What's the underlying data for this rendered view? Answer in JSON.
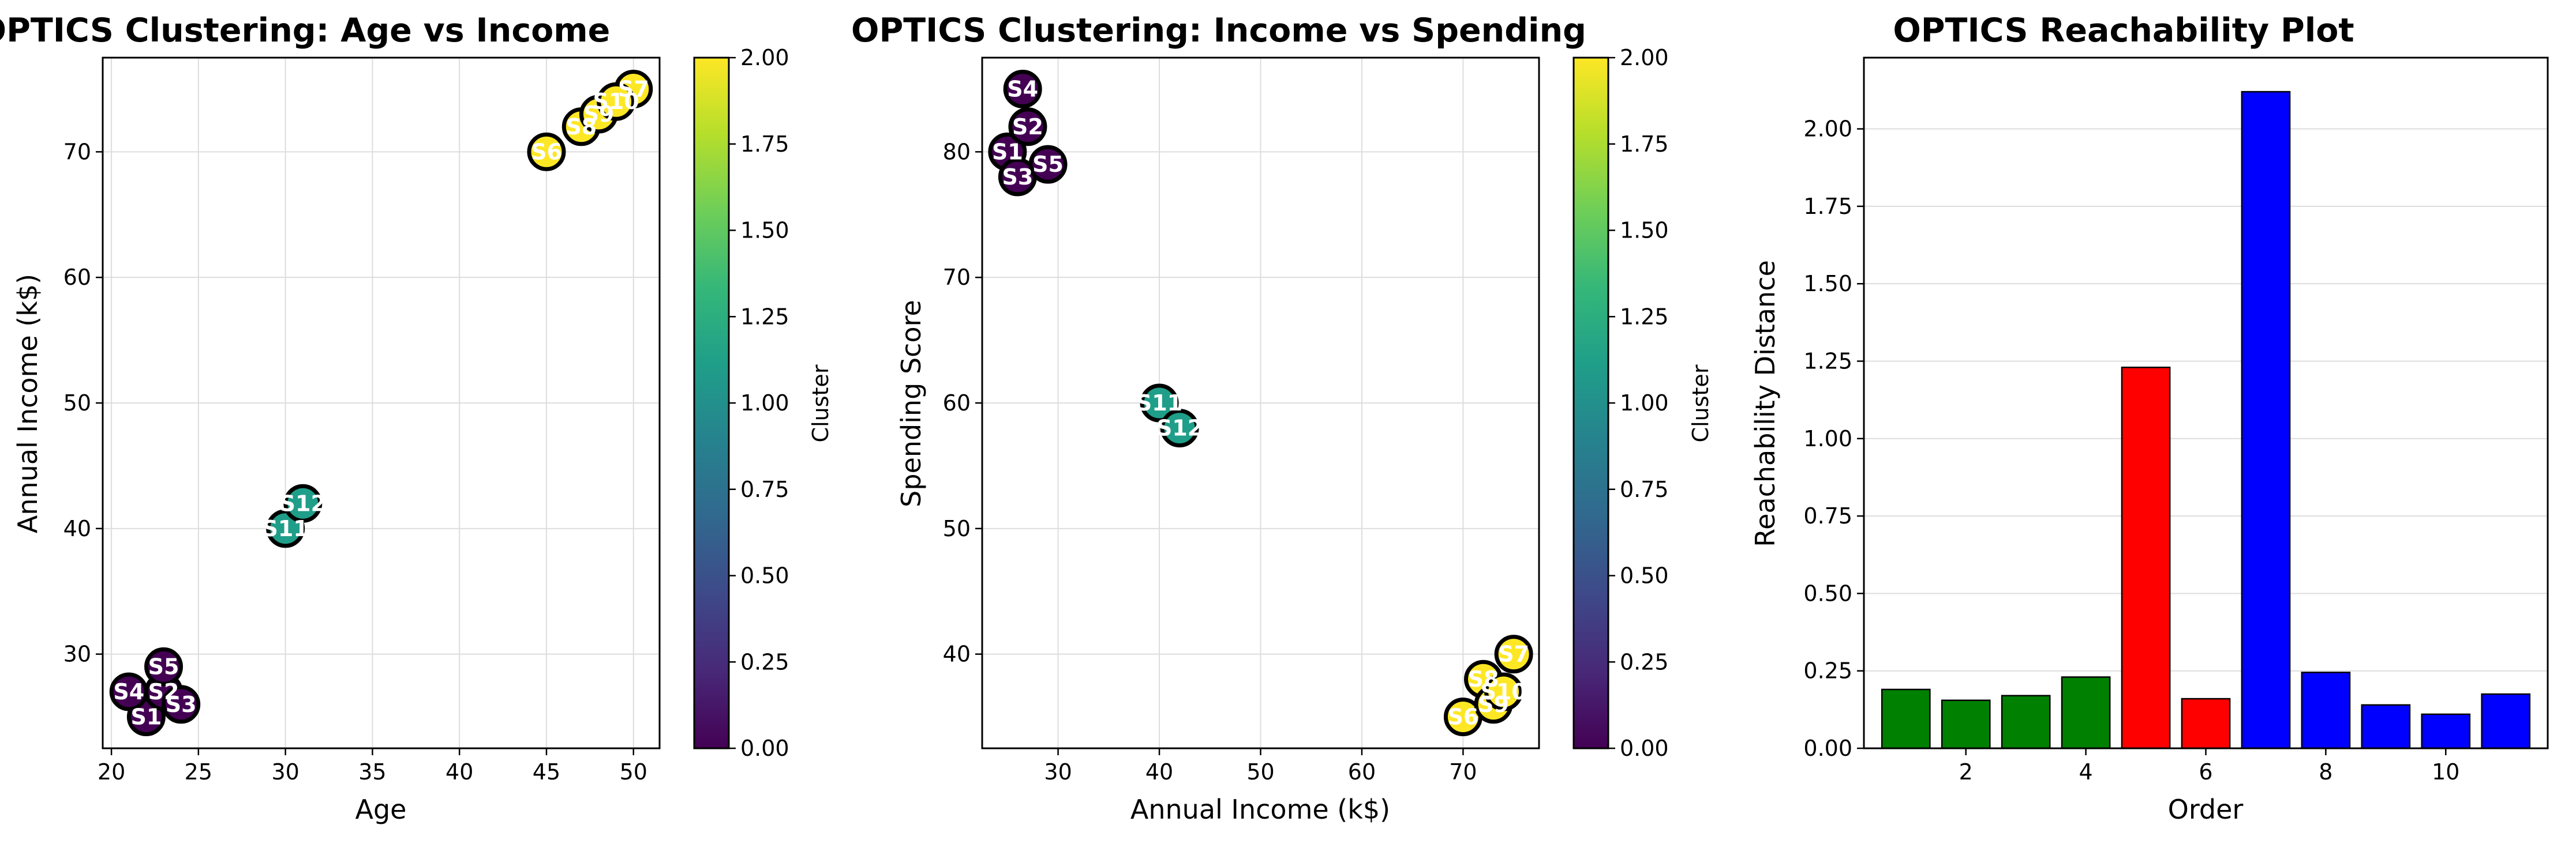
{
  "colors": {
    "viridis": [
      "#440154",
      "#482878",
      "#3e4989",
      "#31688e",
      "#26828e",
      "#1f9e89",
      "#35b779",
      "#6ece58",
      "#b5de2b",
      "#fde725"
    ],
    "grid": "#dddddd",
    "bar_edge": "#000000",
    "point_edge": "#000000"
  },
  "chart_data": [
    {
      "type": "scatter",
      "title": "OPTICS Clustering: Age vs Income",
      "xlabel": "Age",
      "ylabel": "Annual Income (k$)",
      "xlim": [
        19.5,
        51.5
      ],
      "ylim": [
        22.5,
        77.5
      ],
      "xticks": [
        20,
        25,
        30,
        35,
        40,
        45,
        50
      ],
      "yticks": [
        30,
        40,
        50,
        60,
        70
      ],
      "grid": true,
      "colorbar": {
        "label": "Cluster",
        "min": 0,
        "max": 2,
        "ticks": [
          "0.00",
          "0.25",
          "0.50",
          "0.75",
          "1.00",
          "1.25",
          "1.50",
          "1.75",
          "2.00"
        ]
      },
      "points": [
        {
          "label": "S1",
          "x": 22,
          "y": 25,
          "cluster": 0
        },
        {
          "label": "S2",
          "x": 23,
          "y": 27,
          "cluster": 0
        },
        {
          "label": "S3",
          "x": 24,
          "y": 26,
          "cluster": 0
        },
        {
          "label": "S4",
          "x": 21,
          "y": 27,
          "cluster": 0
        },
        {
          "label": "S5",
          "x": 23,
          "y": 29,
          "cluster": 0
        },
        {
          "label": "S6",
          "x": 45,
          "y": 70,
          "cluster": 2
        },
        {
          "label": "S7",
          "x": 50,
          "y": 75,
          "cluster": 2
        },
        {
          "label": "S8",
          "x": 47,
          "y": 72,
          "cluster": 2
        },
        {
          "label": "S9",
          "x": 48,
          "y": 73,
          "cluster": 2
        },
        {
          "label": "S10",
          "x": 49,
          "y": 74,
          "cluster": 2
        },
        {
          "label": "S11",
          "x": 30,
          "y": 40,
          "cluster": 1
        },
        {
          "label": "S12",
          "x": 31,
          "y": 42,
          "cluster": 1
        }
      ]
    },
    {
      "type": "scatter",
      "title": "OPTICS Clustering: Income vs Spending",
      "xlabel": "Annual Income (k$)",
      "ylabel": "Spending Score",
      "xlim": [
        22.5,
        77.5
      ],
      "ylim": [
        32.5,
        87.5
      ],
      "xticks": [
        30,
        40,
        50,
        60,
        70
      ],
      "yticks": [
        40,
        50,
        60,
        70,
        80
      ],
      "grid": true,
      "colorbar": {
        "label": "Cluster",
        "min": 0,
        "max": 2,
        "ticks": [
          "0.00",
          "0.25",
          "0.50",
          "0.75",
          "1.00",
          "1.25",
          "1.50",
          "1.75",
          "2.00"
        ]
      },
      "points": [
        {
          "label": "S1",
          "x": 25,
          "y": 80,
          "cluster": 0
        },
        {
          "label": "S2",
          "x": 27,
          "y": 82,
          "cluster": 0
        },
        {
          "label": "S3",
          "x": 26,
          "y": 78,
          "cluster": 0
        },
        {
          "label": "S4",
          "x": 26.5,
          "y": 85,
          "cluster": 0
        },
        {
          "label": "S5",
          "x": 29,
          "y": 79,
          "cluster": 0
        },
        {
          "label": "S6",
          "x": 70,
          "y": 35,
          "cluster": 2
        },
        {
          "label": "S7",
          "x": 75,
          "y": 40,
          "cluster": 2
        },
        {
          "label": "S8",
          "x": 72,
          "y": 38,
          "cluster": 2
        },
        {
          "label": "S9",
          "x": 73,
          "y": 36,
          "cluster": 2
        },
        {
          "label": "S10",
          "x": 74,
          "y": 37,
          "cluster": 2
        },
        {
          "label": "S11",
          "x": 40,
          "y": 60,
          "cluster": 1
        },
        {
          "label": "S12",
          "x": 42,
          "y": 58,
          "cluster": 1
        }
      ]
    },
    {
      "type": "bar",
      "title": "OPTICS Reachability Plot",
      "xlabel": "Order",
      "ylabel": "Reachability Distance",
      "xlim": [
        0.3,
        11.7
      ],
      "ylim": [
        0,
        2.23
      ],
      "xticks": [
        2,
        4,
        6,
        8,
        10
      ],
      "yticks": [
        "0.00",
        "0.25",
        "0.50",
        "0.75",
        "1.00",
        "1.25",
        "1.50",
        "1.75",
        "2.00"
      ],
      "grid": true,
      "categories": [
        1,
        2,
        3,
        4,
        5,
        6,
        7,
        8,
        9,
        10,
        11
      ],
      "values": [
        0.19,
        0.155,
        0.17,
        0.23,
        1.23,
        0.16,
        2.12,
        0.245,
        0.14,
        0.11,
        0.175
      ],
      "bar_colors": [
        "#008000",
        "#008000",
        "#008000",
        "#008000",
        "#ff0000",
        "#ff0000",
        "#0000ff",
        "#0000ff",
        "#0000ff",
        "#0000ff",
        "#0000ff"
      ]
    }
  ]
}
